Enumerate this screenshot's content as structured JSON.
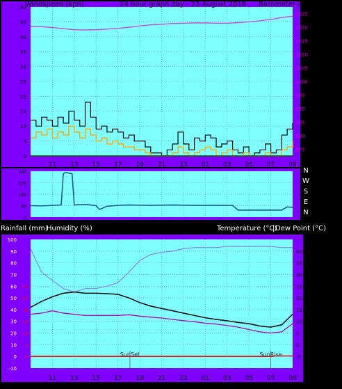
{
  "colors": {
    "panel_bg": "#8000ff",
    "plot_bg": "#80ffff",
    "grid": "#6a7fd0",
    "wind_avg": "#000000",
    "wind_gust": "#ffa500",
    "wind_dark": "#006400",
    "barometer": "#d040d0",
    "direction": "#1b5f8c",
    "temperature": "#000000",
    "dewpoint": "#b000b0",
    "humidity": "#8a8ae6",
    "rainfall": "#ff0000",
    "right_axis_text": "#d000d0",
    "rain_axis_text": "#ff0000"
  },
  "top_chart": {
    "title": "24 hour graph day : 23 August 2018",
    "left_label": "Windspeed (kph)",
    "right_label": "Barometer (hpa)"
  },
  "direction_chart": {
    "labels": [
      "N",
      "W",
      "S",
      "E",
      "N"
    ]
  },
  "bottom_chart": {
    "rain_label": "Rainfall (mm)",
    "humidity_label": "Humidity (%)",
    "temp_label": "Temperature (°C)",
    "dew_label": "Dew Point (°C)",
    "sunset_label": "SunSet",
    "sunrise_label": "SunRise"
  },
  "chart_data": [
    {
      "type": "line",
      "title": "24 hour graph day : 23 August 2018",
      "x_ticks": [
        "11",
        "13",
        "15",
        "17",
        "19",
        "21",
        "23",
        "01",
        "03",
        "05",
        "07",
        "09"
      ],
      "xlim_hours": [
        9,
        33
      ],
      "y_left": {
        "label": "Windspeed (kph)",
        "ylim": [
          0,
          50
        ],
        "ticks": [
          0,
          5,
          10,
          15,
          20,
          25,
          30,
          35,
          40,
          45,
          50
        ]
      },
      "y_right": {
        "label": "Barometer (hpa)",
        "ylim": [
          972.5,
          1027.5
        ],
        "ticks": [
          975,
          980,
          985,
          990,
          995,
          1000,
          1005,
          1010,
          1015,
          1020,
          1025
        ]
      },
      "series": [
        {
          "name": "Barometer (hpa)",
          "axis": "right",
          "x": [
            9,
            10,
            11,
            12,
            13,
            14,
            15,
            16,
            17,
            18,
            19,
            20,
            21,
            22,
            23,
            24,
            25,
            26,
            27,
            28,
            29,
            30,
            31,
            32,
            33
          ],
          "values": [
            1020.2,
            1020.2,
            1019.9,
            1019.5,
            1019.1,
            1019.0,
            1019.1,
            1019.3,
            1019.6,
            1020.0,
            1020.5,
            1020.9,
            1021.1,
            1021.4,
            1021.5,
            1021.6,
            1021.6,
            1021.5,
            1021.5,
            1021.7,
            1022.0,
            1022.4,
            1022.9,
            1023.6,
            1024.1
          ]
        },
        {
          "name": "wind average",
          "axis": "left",
          "x": [
            9,
            9.5,
            10,
            10.5,
            11,
            11.5,
            12,
            12.5,
            13,
            13.5,
            14,
            14.5,
            15,
            15.5,
            16,
            16.5,
            17,
            17.5,
            18,
            18.5,
            19,
            19.5,
            20,
            20.5,
            21,
            21.5,
            22,
            22.5,
            23,
            23.5,
            24,
            24.5,
            25,
            25.5,
            26,
            26.5,
            27,
            27.5,
            28,
            28.5,
            29,
            29.5,
            30,
            30.5,
            31,
            31.5,
            32,
            32.5,
            33
          ],
          "values": [
            6,
            8,
            7,
            9,
            6,
            8,
            7,
            10,
            8,
            6,
            9,
            7,
            5,
            6,
            4,
            5,
            4,
            3,
            3,
            2,
            2,
            1,
            0,
            0,
            0,
            0,
            1,
            3,
            1,
            0,
            1,
            2,
            3,
            2,
            0,
            1,
            2,
            0,
            0,
            1,
            0,
            0,
            0,
            1,
            0,
            0,
            2,
            3,
            5
          ]
        },
        {
          "name": "wind gust",
          "axis": "left",
          "x": [
            9,
            9.5,
            10,
            10.5,
            11,
            11.5,
            12,
            12.5,
            13,
            13.5,
            14,
            14.5,
            15,
            15.5,
            16,
            16.5,
            17,
            17.5,
            18,
            18.5,
            19,
            19.5,
            20,
            20.5,
            21,
            21.5,
            22,
            22.5,
            23,
            23.5,
            24,
            24.5,
            25,
            25.5,
            26,
            26.5,
            27,
            27.5,
            28,
            28.5,
            29,
            29.5,
            30,
            30.5,
            31,
            31.5,
            32,
            32.5,
            33
          ],
          "values": [
            12,
            10,
            13,
            12,
            10,
            13,
            11,
            15,
            12,
            10,
            18,
            13,
            9,
            10,
            8,
            9,
            8,
            6,
            7,
            5,
            5,
            3,
            1,
            1,
            0,
            2,
            4,
            8,
            4,
            2,
            6,
            5,
            7,
            6,
            3,
            4,
            5,
            2,
            1,
            3,
            0,
            1,
            2,
            4,
            1,
            2,
            7,
            9,
            11
          ]
        }
      ]
    },
    {
      "type": "line",
      "title": "",
      "x_ticks": [],
      "xlim_hours": [
        9,
        33
      ],
      "y_right_labels": [
        "N",
        "W",
        "S",
        "E",
        "N"
      ],
      "ylim_degrees": [
        0,
        360
      ],
      "series": [
        {
          "name": "wind direction",
          "x": [
            9,
            10,
            11,
            11.8,
            12,
            12.2,
            12.5,
            12.8,
            13,
            14,
            15,
            15.3,
            16,
            17,
            18,
            20,
            22,
            24,
            26,
            27.5,
            28,
            29,
            30,
            31,
            32,
            32.5,
            33
          ],
          "values": [
            90,
            88,
            92,
            95,
            340,
            350,
            345,
            340,
            95,
            100,
            90,
            60,
            85,
            92,
            95,
            92,
            95,
            92,
            92,
            92,
            55,
            55,
            55,
            55,
            55,
            80,
            75
          ]
        }
      ]
    },
    {
      "type": "line",
      "title": "",
      "x_ticks": [
        "11",
        "13",
        "15",
        "17",
        "19",
        "21",
        "23",
        "01",
        "03",
        "05",
        "07",
        "09"
      ],
      "xlim_hours": [
        9,
        33
      ],
      "y_left_humidity": {
        "label": "Humidity (%)",
        "ylim": [
          -10,
          100
        ],
        "ticks": [
          -10,
          0,
          10,
          20,
          30,
          40,
          50,
          60,
          70,
          80,
          90,
          100
        ]
      },
      "y_left_rain": {
        "label": "Rainfall (mm)",
        "ticks_values": [
          0,
          5,
          10,
          15,
          20,
          25,
          30
        ]
      },
      "y_right_temp": {
        "label": "Temperature (°C)",
        "ylim": [
          -10,
          45
        ],
        "ticks": [
          -5,
          0,
          5,
          10,
          15,
          20,
          25,
          30,
          35,
          40
        ]
      },
      "annotations": [
        {
          "text": "SunSet",
          "x": 18.1
        },
        {
          "text": "SunRise",
          "x": 31.0
        }
      ],
      "series": [
        {
          "name": "Humidity (%)",
          "axis": "humidity",
          "x": [
            9,
            10,
            11,
            12,
            13,
            14,
            15,
            16,
            17,
            18,
            19,
            20,
            21,
            22,
            23,
            24,
            25,
            26,
            27,
            28,
            29,
            30,
            31,
            32,
            33
          ],
          "values": [
            92,
            72,
            65,
            58,
            55,
            58,
            58,
            60,
            63,
            72,
            82,
            87,
            89,
            90,
            92,
            93,
            93,
            93,
            94,
            94,
            94,
            94,
            94,
            93,
            93
          ]
        },
        {
          "name": "Temperature (°C)",
          "axis": "temp",
          "x": [
            9,
            10,
            11,
            12,
            13,
            14,
            15,
            16,
            17,
            18,
            19,
            20,
            21,
            22,
            23,
            24,
            25,
            26,
            27,
            28,
            29,
            30,
            31,
            32,
            33
          ],
          "values": [
            16,
            18.5,
            20.5,
            22,
            22.5,
            22,
            22,
            21.8,
            21.5,
            20,
            18,
            16.5,
            15.5,
            14.5,
            13.5,
            12.5,
            11.5,
            10.8,
            10.2,
            9.5,
            9.0,
            8.0,
            7.5,
            8.5,
            13
          ]
        },
        {
          "name": "Dew Point (°C)",
          "axis": "temp",
          "x": [
            9,
            10,
            11,
            12,
            13,
            14,
            15,
            16,
            17,
            18,
            19,
            20,
            21,
            22,
            23,
            24,
            25,
            26,
            27,
            28,
            29,
            30,
            31,
            32,
            33
          ],
          "values": [
            13,
            13.5,
            14.5,
            13.5,
            13,
            12.5,
            12.5,
            12.5,
            12.5,
            12.8,
            12.2,
            11.8,
            11.4,
            10.8,
            10.3,
            9.8,
            9.2,
            8.8,
            8.2,
            7.5,
            6.5,
            5.5,
            5.0,
            5.5,
            9.0
          ]
        },
        {
          "name": "Rainfall (mm)",
          "axis": "rain",
          "x": [
            9,
            31,
            31.2,
            32,
            32.5,
            33
          ],
          "values": [
            0,
            0,
            0.2,
            0.2,
            0.2,
            0.2
          ]
        }
      ]
    }
  ]
}
